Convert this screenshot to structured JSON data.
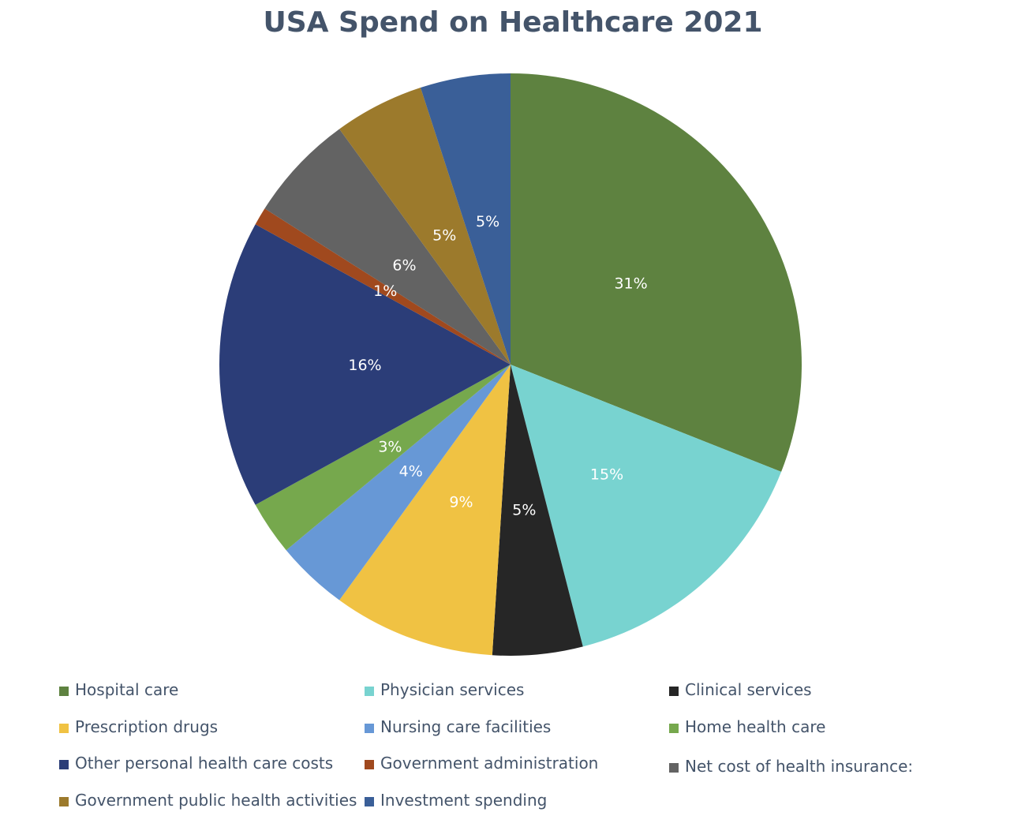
{
  "chart_data": {
    "type": "pie",
    "title": "USA Spend on Healthcare 2021",
    "start": "top",
    "direction": "clockwise",
    "legend_position": "bottom",
    "slices": [
      {
        "name": "Hospital care",
        "value": 31,
        "label": "31%",
        "color": "#5e8240"
      },
      {
        "name": "Physician services",
        "value": 15,
        "label": "15%",
        "color": "#78d3d0"
      },
      {
        "name": "Clinical services",
        "value": 5,
        "label": "5%",
        "color": "#262626"
      },
      {
        "name": "Prescription drugs",
        "value": 9,
        "label": "9%",
        "color": "#f0c243"
      },
      {
        "name": "Nursing care facilities",
        "value": 4,
        "label": "4%",
        "color": "#6798d6"
      },
      {
        "name": "Home health care",
        "value": 3,
        "label": "3%",
        "color": "#76a84d"
      },
      {
        "name": "Other personal health care costs",
        "value": 16,
        "label": "16%",
        "color": "#2b3d78"
      },
      {
        "name": "Government administration",
        "value": 1,
        "label": "1%",
        "color": "#a0491e"
      },
      {
        "name": "Net cost of health insurance:",
        "value": 6,
        "label": "6%",
        "color": "#636363"
      },
      {
        "name": "Government public health activities",
        "value": 5,
        "label": "5%",
        "color": "#9c7a2c"
      },
      {
        "name": "Investment spending",
        "value": 5,
        "label": "5%",
        "color": "#3a5f98"
      }
    ]
  }
}
